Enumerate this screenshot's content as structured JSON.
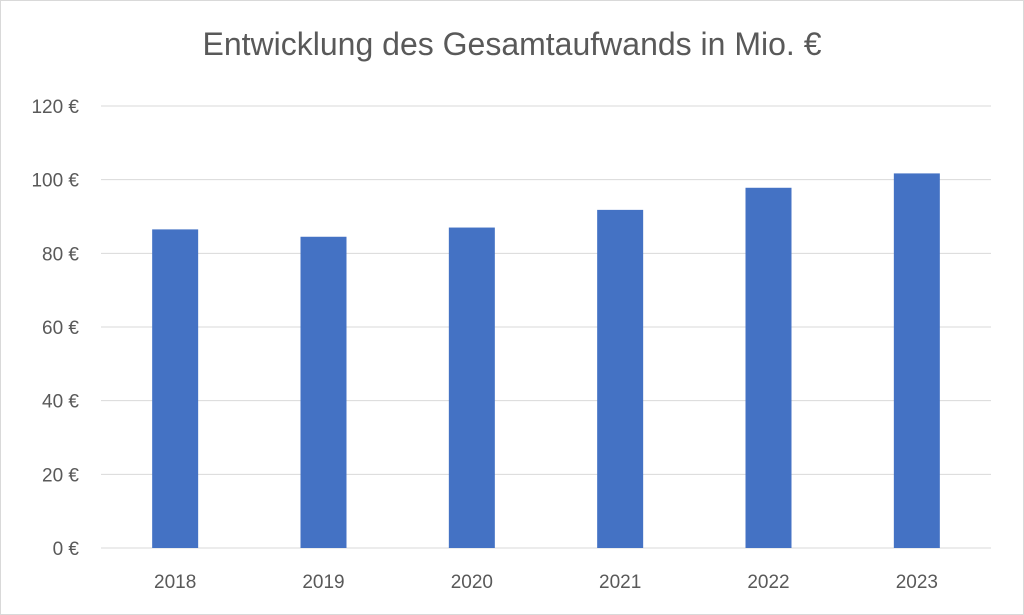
{
  "chart_data": {
    "type": "bar",
    "title": "Entwicklung des Gesamtaufwands in Mio. €",
    "categories": [
      "2018",
      "2019",
      "2020",
      "2021",
      "2022",
      "2023"
    ],
    "values": [
      86.5,
      84.5,
      87,
      91.8,
      97.8,
      101.7
    ],
    "ylim": [
      0,
      120
    ],
    "yticks": [
      0,
      20,
      40,
      60,
      80,
      100,
      120
    ],
    "ytick_labels": [
      "0 €",
      "20 €",
      "40 €",
      "60 €",
      "80 €",
      "100 €",
      "120 €"
    ],
    "grid": true,
    "bar_color": "#4472c4",
    "grid_color": "#d9d9d9",
    "text_color": "#595959"
  }
}
